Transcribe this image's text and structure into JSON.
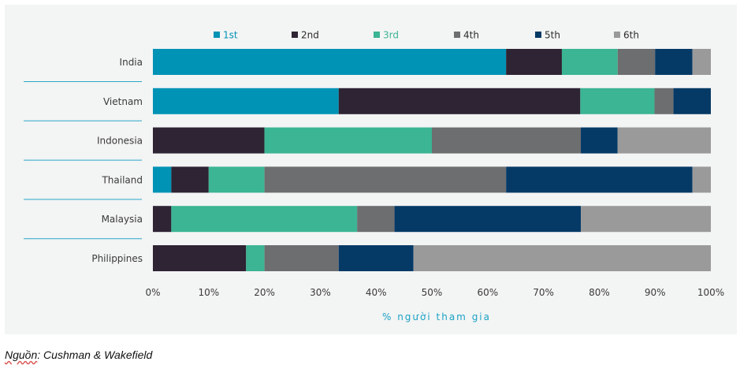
{
  "chart_data": {
    "type": "bar",
    "orientation": "horizontal",
    "stacked": true,
    "title": "",
    "categories": [
      "India",
      "Vietnam",
      "Indonesia",
      "Thailand",
      "Malaysia",
      "Philippines"
    ],
    "series": [
      {
        "name": "1st",
        "color": "#0093b5",
        "values": [
          63.3,
          33.3,
          0,
          3.3,
          0,
          0
        ]
      },
      {
        "name": "2nd",
        "color": "#2e2433",
        "values": [
          10.0,
          43.3,
          20.0,
          6.7,
          3.3,
          16.7
        ]
      },
      {
        "name": "3rd",
        "color": "#3bb594",
        "values": [
          10.0,
          13.3,
          30.0,
          10.0,
          33.3,
          3.3
        ]
      },
      {
        "name": "4th",
        "color": "#6d6e70",
        "values": [
          6.7,
          3.4,
          26.7,
          43.3,
          6.7,
          13.3
        ]
      },
      {
        "name": "5th",
        "color": "#063a66",
        "values": [
          6.7,
          6.7,
          6.6,
          33.4,
          33.4,
          13.4
        ]
      },
      {
        "name": "6th",
        "color": "#9a9a9a",
        "values": [
          3.3,
          0,
          16.7,
          3.3,
          23.3,
          53.3
        ]
      }
    ],
    "xlim": [
      0,
      100
    ],
    "xticks": [
      "0%",
      "10%",
      "20%",
      "30%",
      "40%",
      "50%",
      "60%",
      "70%",
      "80%",
      "90%",
      "100%"
    ],
    "xlabel": "% người tham gia",
    "ylabel": "",
    "legend_position": "top"
  },
  "source_note": {
    "prefix": "Nguồn",
    "text": ": Cushman & Wakefield"
  }
}
